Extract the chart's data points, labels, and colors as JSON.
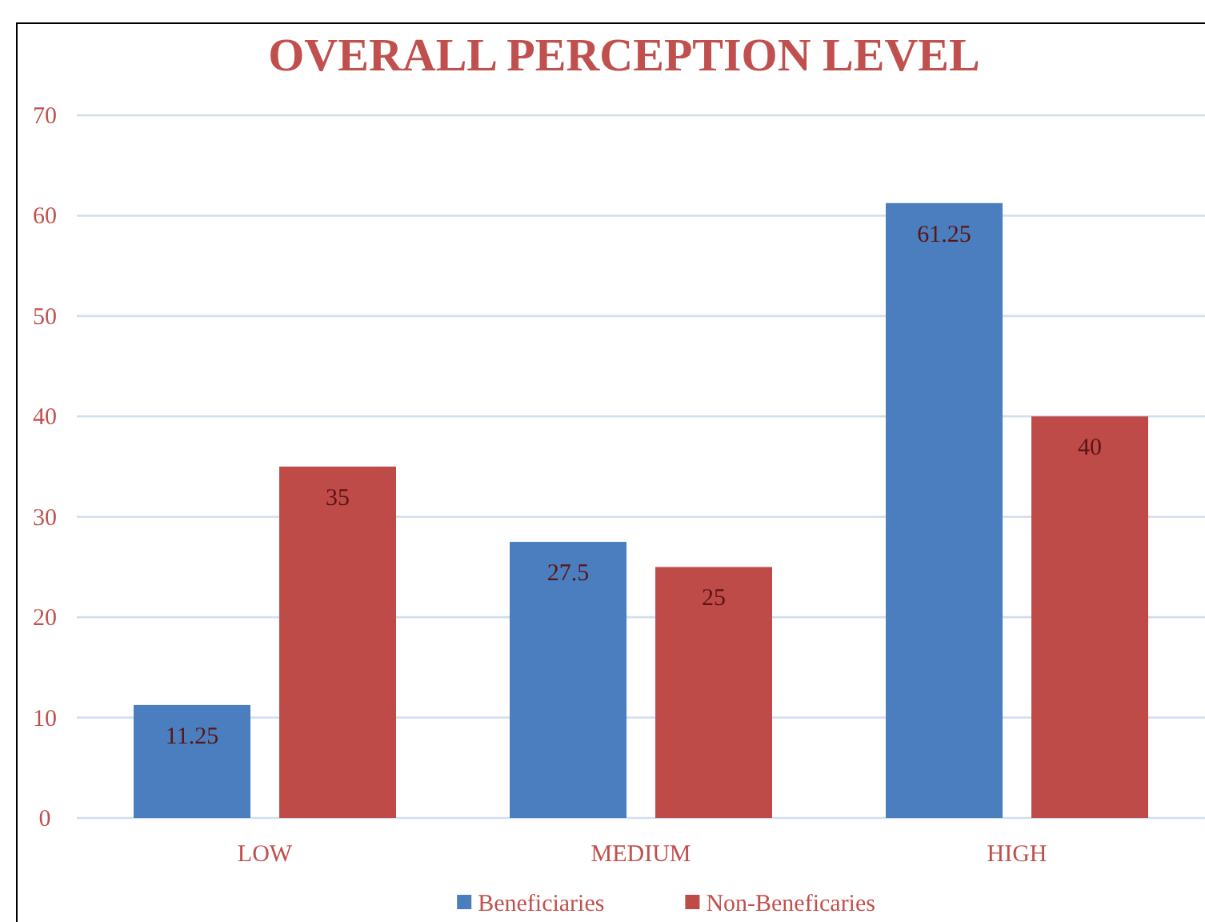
{
  "chart_data": {
    "type": "bar",
    "title": "OVERALL PERCEPTION LEVEL",
    "categories": [
      "LOW",
      "MEDIUM",
      "HIGH"
    ],
    "series": [
      {
        "name": "Beneficiaries",
        "color": "#4a7ebf",
        "values": [
          11.25,
          27.5,
          61.25
        ]
      },
      {
        "name": "Non-Beneficaries",
        "color": "#be4b48",
        "values": [
          35,
          25,
          40
        ]
      }
    ],
    "ylim": [
      0,
      70
    ],
    "yticks": [
      0,
      10,
      20,
      30,
      40,
      50,
      60,
      70
    ],
    "grid": "y",
    "legend": "bottom",
    "data_labels": true
  }
}
